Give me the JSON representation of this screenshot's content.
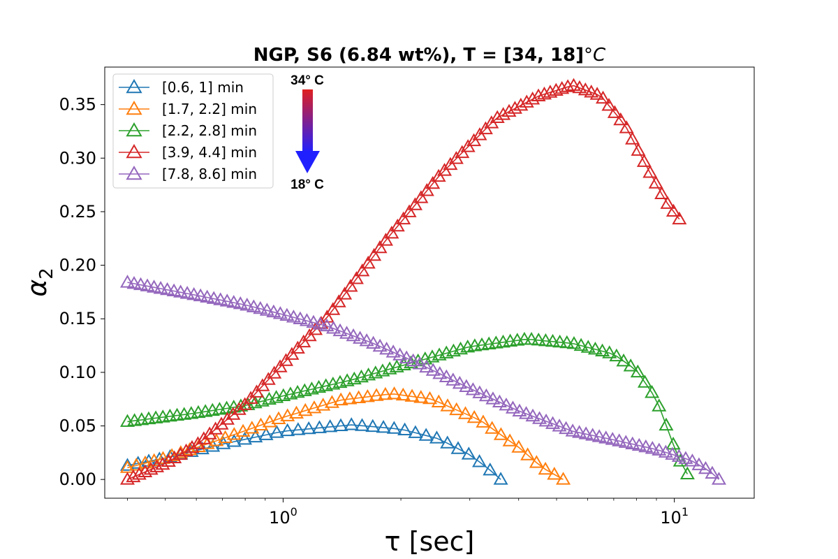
{
  "chart_data": {
    "type": "line",
    "title": "NGP, S6 (6.84 wt%), T = [34, 18]",
    "title_unit": "°C",
    "xlabel": "τ [sec]",
    "ylabel": "α",
    "ylabel_subscript": "2",
    "xscale": "log",
    "xlim": [
      0.35,
      16
    ],
    "ylim": [
      -0.0175,
      0.385
    ],
    "x_ticks": [
      {
        "value": 1,
        "base": "10",
        "exp": "0"
      },
      {
        "value": 10,
        "base": "10",
        "exp": "1"
      }
    ],
    "y_ticks": [
      {
        "value": 0.0,
        "label": "0.00"
      },
      {
        "value": 0.05,
        "label": "0.05"
      },
      {
        "value": 0.1,
        "label": "0.10"
      },
      {
        "value": 0.15,
        "label": "0.15"
      },
      {
        "value": 0.2,
        "label": "0.20"
      },
      {
        "value": 0.25,
        "label": "0.25"
      },
      {
        "value": 0.3,
        "label": "0.30"
      },
      {
        "value": 0.35,
        "label": "0.35"
      }
    ],
    "marker": "triangle-open",
    "legend_position": "top-left",
    "grid": false,
    "series": [
      {
        "name": "[0.6, 1] min",
        "color": "#1f77b4",
        "x_start": 0.4,
        "x_end": 3.6,
        "n": 36,
        "knots": [
          [
            0.4,
            0.013
          ],
          [
            0.5,
            0.02
          ],
          [
            0.7,
            0.033
          ],
          [
            1.0,
            0.045
          ],
          [
            1.5,
            0.051
          ],
          [
            2.0,
            0.047
          ],
          [
            2.5,
            0.038
          ],
          [
            3.0,
            0.023
          ],
          [
            3.3,
            0.012
          ],
          [
            3.6,
            0.0
          ]
        ]
      },
      {
        "name": "[1.7, 2.2] min",
        "color": "#ff7f0e",
        "x_start": 0.4,
        "x_end": 5.2,
        "n": 50,
        "knots": [
          [
            0.4,
            0.011
          ],
          [
            0.5,
            0.02
          ],
          [
            0.7,
            0.038
          ],
          [
            1.0,
            0.058
          ],
          [
            1.4,
            0.074
          ],
          [
            1.9,
            0.08
          ],
          [
            2.4,
            0.075
          ],
          [
            3.2,
            0.055
          ],
          [
            4.0,
            0.03
          ],
          [
            4.6,
            0.011
          ],
          [
            5.2,
            0.0
          ]
        ]
      },
      {
        "name": "[2.2, 2.8] min",
        "color": "#2ca02c",
        "x_start": 0.4,
        "x_end": 10.8,
        "n": 80,
        "knots": [
          [
            0.4,
            0.054
          ],
          [
            0.6,
            0.062
          ],
          [
            0.8,
            0.069
          ],
          [
            1.0,
            0.078
          ],
          [
            1.5,
            0.093
          ],
          [
            2.0,
            0.106
          ],
          [
            3.0,
            0.124
          ],
          [
            4.2,
            0.131
          ],
          [
            5.5,
            0.127
          ],
          [
            7.0,
            0.117
          ],
          [
            8.0,
            0.102
          ],
          [
            9.0,
            0.075
          ],
          [
            10.0,
            0.03
          ],
          [
            10.5,
            0.012
          ],
          [
            10.8,
            0.005
          ]
        ]
      },
      {
        "name": "[3.9, 4.4] min",
        "color": "#d62728",
        "x_start": 0.4,
        "x_end": 10.3,
        "n": 95,
        "knots": [
          [
            0.4,
            0.0
          ],
          [
            0.5,
            0.015
          ],
          [
            0.6,
            0.032
          ],
          [
            0.8,
            0.07
          ],
          [
            1.0,
            0.108
          ],
          [
            1.3,
            0.152
          ],
          [
            1.8,
            0.22
          ],
          [
            2.5,
            0.283
          ],
          [
            3.5,
            0.337
          ],
          [
            4.5,
            0.358
          ],
          [
            5.5,
            0.368
          ],
          [
            6.5,
            0.358
          ],
          [
            7.5,
            0.33
          ],
          [
            8.5,
            0.292
          ],
          [
            9.5,
            0.26
          ],
          [
            10.3,
            0.243
          ]
        ]
      },
      {
        "name": "[7.8, 8.6] min",
        "color": "#9467bd",
        "x_start": 0.4,
        "x_end": 13.0,
        "n": 90,
        "knots": [
          [
            0.4,
            0.184
          ],
          [
            0.6,
            0.172
          ],
          [
            0.8,
            0.163
          ],
          [
            1.0,
            0.154
          ],
          [
            1.3,
            0.143
          ],
          [
            1.7,
            0.127
          ],
          [
            2.2,
            0.109
          ],
          [
            3.0,
            0.085
          ],
          [
            4.0,
            0.064
          ],
          [
            5.5,
            0.045
          ],
          [
            7.0,
            0.037
          ],
          [
            9.0,
            0.028
          ],
          [
            11.0,
            0.018
          ],
          [
            12.3,
            0.008
          ],
          [
            13.0,
            0.0
          ]
        ]
      }
    ]
  },
  "annotation": {
    "top_label": "34° C",
    "bottom_label": "18° C",
    "gradient_top_color": "#e02020",
    "gradient_bottom_color": "#2020ff"
  }
}
